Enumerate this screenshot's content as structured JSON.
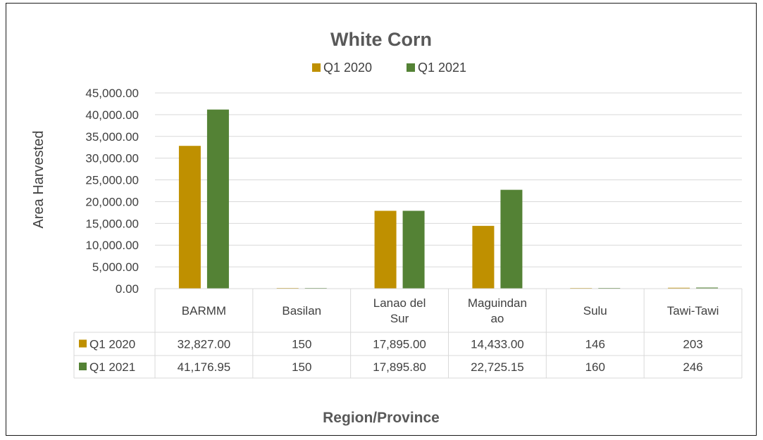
{
  "chart_data": {
    "type": "bar",
    "title": "White Corn",
    "xlabel": "Region/Province",
    "ylabel": "Area Harvested",
    "categories": [
      "BARMM",
      "Basilan",
      "Lanao del Sur",
      "Maguindanao",
      "Sulu",
      "Tawi-Tawi"
    ],
    "category_display": [
      [
        "BARMM"
      ],
      [
        "Basilan"
      ],
      [
        "Lanao del",
        "Sur"
      ],
      [
        "Maguindan",
        "ao"
      ],
      [
        "Sulu"
      ],
      [
        "Tawi-Tawi"
      ]
    ],
    "series": [
      {
        "name": "Q1 2020",
        "color": "#bf9000",
        "values": [
          32827.0,
          150,
          17895.0,
          14433.0,
          146,
          203
        ],
        "table_labels": [
          "32,827.00",
          "150",
          "17,895.00",
          "14,433.00",
          "146",
          "203"
        ]
      },
      {
        "name": "Q1 2021",
        "color": "#548235",
        "values": [
          41176.95,
          150,
          17895.8,
          22725.15,
          160,
          246
        ],
        "table_labels": [
          "41,176.95",
          "150",
          "17,895.80",
          "22,725.15",
          "160",
          "246"
        ]
      }
    ],
    "ylim": [
      0,
      45000
    ],
    "yticks": [
      "0.00",
      "5,000.00",
      "10,000.00",
      "15,000.00",
      "20,000.00",
      "25,000.00",
      "30,000.00",
      "35,000.00",
      "40,000.00",
      "45,000.00"
    ],
    "ytick_values": [
      0,
      5000,
      10000,
      15000,
      20000,
      25000,
      30000,
      35000,
      40000,
      45000
    ],
    "grid": true,
    "legend_position": "top-center",
    "data_table": true
  }
}
